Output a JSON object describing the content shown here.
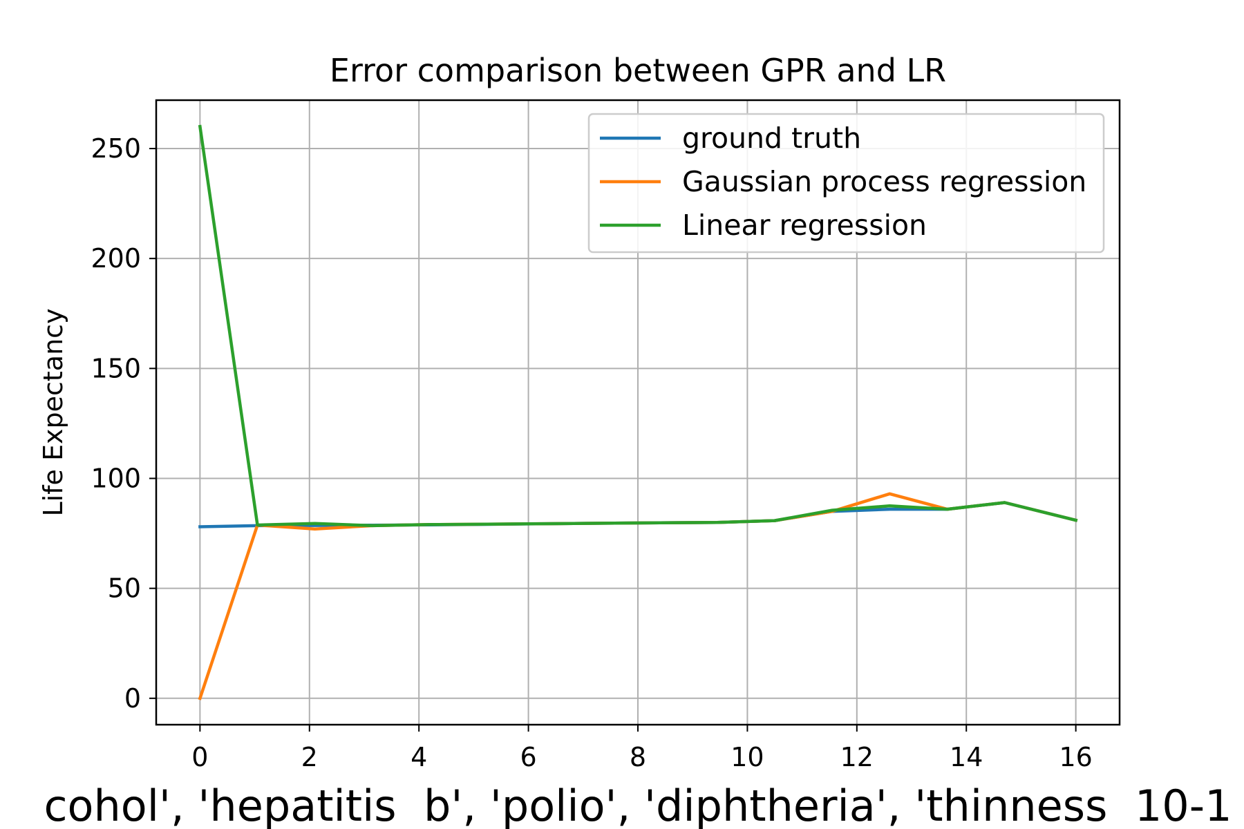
{
  "chart_data": {
    "type": "line",
    "title": "Error comparison between GPR and LR",
    "xlabel": "cohol', 'hepatitis  b', 'polio', 'diphtheria', 'thinness  10-1",
    "ylabel": "Life Expectancy",
    "xlim": [
      -0.8,
      16.8
    ],
    "ylim": [
      -12,
      272
    ],
    "x_ticks": [
      0,
      2,
      4,
      6,
      8,
      10,
      12,
      14,
      16
    ],
    "y_ticks": [
      0,
      50,
      100,
      150,
      200,
      250
    ],
    "grid": true,
    "legend_position": "top-right",
    "x": [
      0,
      1.05,
      2.1,
      3.15,
      4.2,
      5.25,
      6.3,
      7.35,
      8.4,
      9.45,
      10.5,
      11.55,
      12.6,
      13.65,
      14.7,
      16
    ],
    "series": [
      {
        "name": "ground truth",
        "color": "#1f77b4",
        "values": [
          78.0,
          78.5,
          78.6,
          78.7,
          78.9,
          79.1,
          79.4,
          79.6,
          79.8,
          80.0,
          80.8,
          85.0,
          86.0,
          86.0,
          89.0,
          81.0
        ]
      },
      {
        "name": "Gaussian process regression",
        "color": "#ff7f0e",
        "values": [
          0.0,
          78.8,
          77.0,
          78.5,
          79.0,
          79.2,
          79.4,
          79.6,
          79.8,
          80.0,
          80.8,
          85.0,
          93.0,
          86.0,
          89.0,
          81.0
        ]
      },
      {
        "name": "Linear regression",
        "color": "#2ca02c",
        "values": [
          260.0,
          78.8,
          79.5,
          78.5,
          79.0,
          79.2,
          79.4,
          79.6,
          79.8,
          80.0,
          80.8,
          85.5,
          87.5,
          86.0,
          89.0,
          81.0
        ]
      }
    ]
  }
}
